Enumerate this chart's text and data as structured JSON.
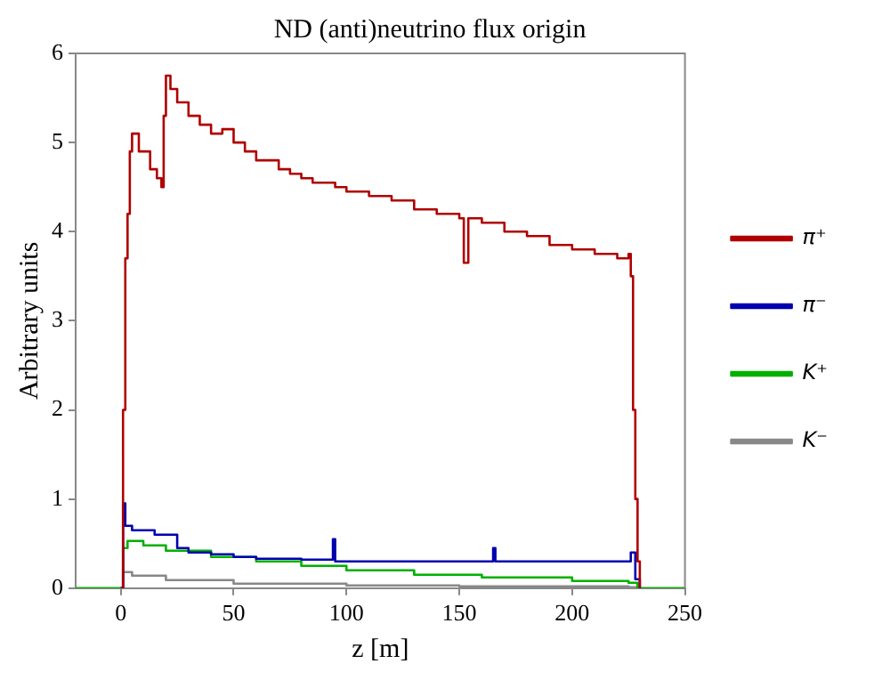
{
  "chart_data": {
    "type": "step",
    "title": "ND (anti)neutrino flux origin",
    "xlabel": "z [m]",
    "ylabel": "Arbitrary units",
    "xlim": [
      -20,
      250
    ],
    "xticks": [
      0,
      50,
      100,
      150,
      200,
      250
    ],
    "ylim": [
      0,
      6
    ],
    "yticks": [
      0,
      1,
      2,
      3,
      4,
      5,
      6
    ],
    "grid": false,
    "legend": "right",
    "marker": "none",
    "line_style": "solid",
    "series": [
      {
        "name": "π⁺",
        "color": "#b00000",
        "x": [
          0,
          1,
          2,
          3,
          4,
          5,
          8,
          10,
          13,
          16,
          18,
          19,
          20,
          22,
          25,
          30,
          35,
          40,
          45,
          50,
          55,
          60,
          65,
          70,
          75,
          80,
          85,
          90,
          95,
          100,
          110,
          120,
          130,
          140,
          150,
          152,
          154,
          160,
          170,
          180,
          190,
          200,
          210,
          220,
          225,
          226,
          227,
          228,
          229,
          230
        ],
        "values": [
          0,
          2.0,
          3.7,
          4.2,
          4.9,
          5.1,
          4.9,
          4.9,
          4.7,
          4.6,
          4.5,
          5.3,
          5.75,
          5.6,
          5.45,
          5.3,
          5.2,
          5.1,
          5.15,
          5.0,
          4.9,
          4.8,
          4.8,
          4.7,
          4.65,
          4.6,
          4.55,
          4.55,
          4.5,
          4.45,
          4.4,
          4.35,
          4.25,
          4.2,
          4.15,
          3.65,
          4.15,
          4.1,
          4.0,
          3.95,
          3.85,
          3.8,
          3.75,
          3.7,
          3.75,
          3.5,
          2.0,
          1.0,
          0.3,
          0
        ]
      },
      {
        "name": "π⁻",
        "color": "#0000b0",
        "x": [
          0,
          1,
          2,
          5,
          10,
          15,
          20,
          25,
          30,
          40,
          50,
          60,
          80,
          93,
          94,
          95,
          100,
          120,
          150,
          164,
          165,
          166,
          180,
          200,
          220,
          226,
          228,
          230
        ],
        "values": [
          0,
          0.95,
          0.7,
          0.65,
          0.65,
          0.6,
          0.6,
          0.45,
          0.4,
          0.38,
          0.35,
          0.33,
          0.32,
          0.32,
          0.55,
          0.3,
          0.3,
          0.3,
          0.3,
          0.3,
          0.45,
          0.3,
          0.3,
          0.3,
          0.3,
          0.4,
          0.1,
          0
        ]
      },
      {
        "name": "K⁺",
        "color": "#00b000",
        "x": [
          -20,
          0,
          1,
          3,
          10,
          20,
          40,
          60,
          80,
          100,
          130,
          160,
          200,
          225,
          229,
          250
        ],
        "values": [
          0,
          0,
          0.45,
          0.53,
          0.48,
          0.42,
          0.35,
          0.3,
          0.25,
          0.2,
          0.15,
          0.12,
          0.08,
          0.06,
          0,
          0
        ]
      },
      {
        "name": "K⁻",
        "color": "#888888",
        "x": [
          0,
          1,
          5,
          20,
          50,
          100,
          150,
          225,
          229
        ],
        "values": [
          0,
          0.18,
          0.14,
          0.09,
          0.05,
          0.03,
          0.02,
          0.01,
          0
        ]
      }
    ]
  }
}
